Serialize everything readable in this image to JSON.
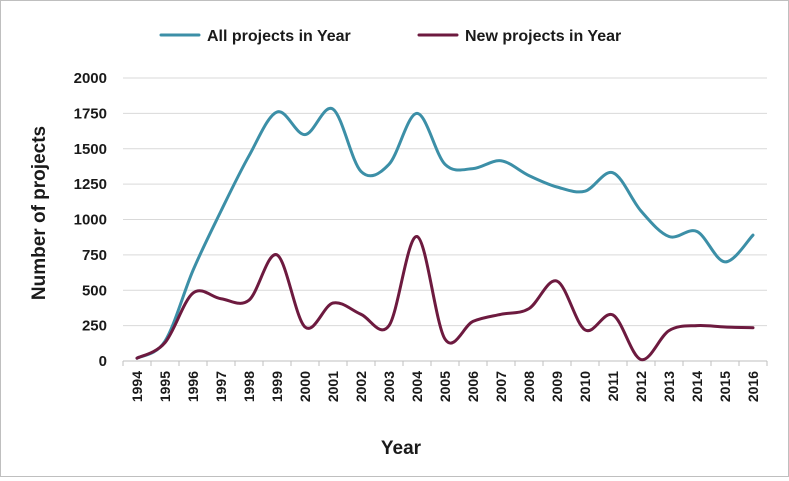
{
  "chart_data": {
    "type": "line",
    "title": "",
    "xlabel": "Year",
    "ylabel": "Number of projects",
    "ylim": [
      0,
      2000
    ],
    "yticks": [
      0,
      250,
      500,
      750,
      1000,
      1250,
      1500,
      1750,
      2000
    ],
    "ytick_labels": [
      "0",
      "250",
      "500",
      "750",
      "1000",
      "1250",
      "1500",
      "1750",
      "2000"
    ],
    "categories": [
      "1994",
      "1995",
      "1996",
      "1997",
      "1998",
      "1999",
      "2000",
      "2001",
      "2002",
      "2003",
      "2004",
      "2005",
      "2006",
      "2007",
      "2008",
      "2009",
      "2010",
      "2011",
      "2012",
      "2013",
      "2014",
      "2015",
      "2016"
    ],
    "grid": true,
    "legend_position": "top",
    "series": [
      {
        "name": "All projects in Year",
        "color": "#3c8fa7",
        "values": [
          20,
          140,
          640,
          1060,
          1450,
          1760,
          1600,
          1780,
          1340,
          1390,
          1750,
          1390,
          1360,
          1415,
          1310,
          1230,
          1200,
          1330,
          1060,
          880,
          915,
          700,
          890
        ]
      },
      {
        "name": "New projects in Year",
        "color": "#6d1a3f",
        "values": [
          20,
          130,
          480,
          440,
          430,
          750,
          240,
          410,
          330,
          250,
          880,
          155,
          280,
          330,
          370,
          565,
          220,
          325,
          10,
          215,
          250,
          240,
          235
        ]
      }
    ]
  }
}
